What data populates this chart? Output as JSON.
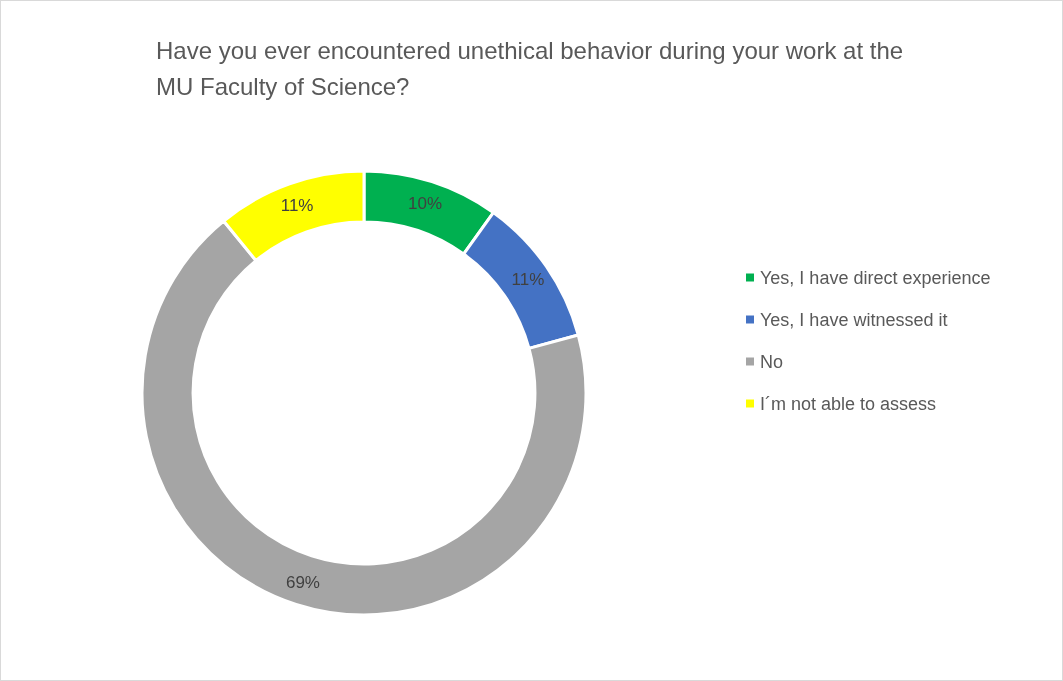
{
  "chart_data": {
    "type": "donut",
    "title": "Have you ever encountered unethical behavior during your work at the MU Faculty of Science?",
    "categories": [
      "Yes, I have direct experience",
      "Yes, I have witnessed it",
      "No",
      "I´m not able to assess"
    ],
    "values": [
      10,
      11,
      69,
      11
    ],
    "value_labels": [
      "10%",
      "11%",
      "69%",
      "11%"
    ],
    "colors": [
      "#00b050",
      "#4472c4",
      "#a5a5a5",
      "#ffff00"
    ],
    "legend": "right"
  }
}
